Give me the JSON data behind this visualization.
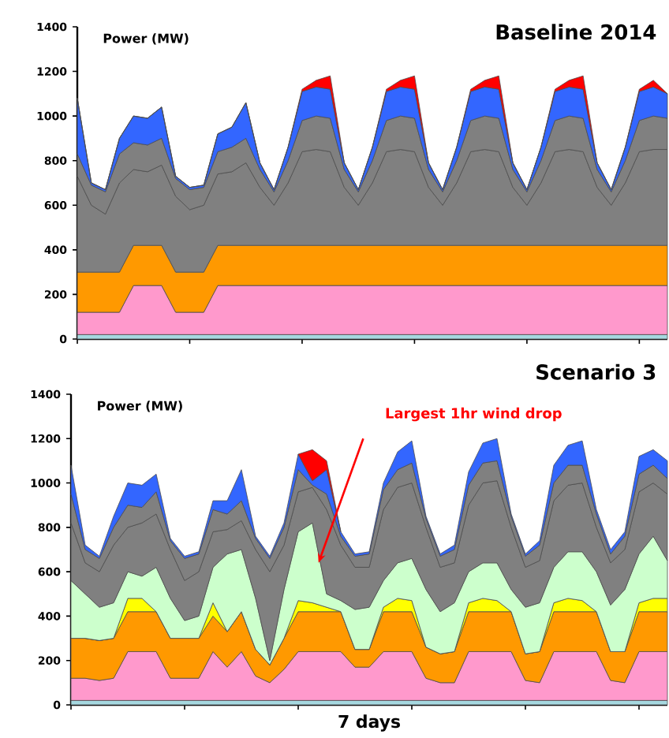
{
  "chart_data": [
    {
      "type": "area",
      "stacked": true,
      "title": "Baseline 2014",
      "ylabel": "Power (MW)",
      "categories": [
        null,
        null,
        null,
        null,
        null,
        null,
        null,
        null,
        null,
        null,
        null,
        null,
        null,
        null,
        null,
        null,
        null,
        null,
        null,
        null,
        null,
        null,
        null,
        null,
        null,
        null,
        null,
        null,
        null,
        null,
        null,
        null,
        null,
        null,
        null,
        null,
        null,
        null,
        null,
        null,
        null,
        null,
        null
      ],
      "ylim": [
        0,
        1400
      ],
      "yticks": [
        0,
        200,
        400,
        600,
        800,
        1000,
        1200,
        1400
      ],
      "tick_labels": "y",
      "series": [
        {
          "color": "#a6d8e0",
          "values": [
            20,
            20,
            20,
            20,
            20,
            20,
            20,
            20,
            20,
            20,
            20,
            20,
            20,
            20,
            20,
            20,
            20,
            20,
            20,
            20,
            20,
            20,
            20,
            20,
            20,
            20,
            20,
            20,
            20,
            20,
            20,
            20,
            20,
            20,
            20,
            20,
            20,
            20,
            20,
            20,
            20,
            20,
            20
          ]
        },
        {
          "color": "#ff99cc",
          "values": [
            100,
            100,
            100,
            100,
            220,
            220,
            220,
            100,
            100,
            100,
            220,
            220,
            220,
            220,
            220,
            220,
            220,
            220,
            220,
            220,
            220,
            220,
            220,
            220,
            220,
            220,
            220,
            220,
            220,
            220,
            220,
            220,
            220,
            220,
            220,
            220,
            220,
            220,
            220,
            220,
            220,
            220,
            220
          ]
        },
        {
          "color": "#ff9900",
          "values": [
            180,
            180,
            180,
            180,
            180,
            180,
            180,
            180,
            180,
            180,
            180,
            180,
            180,
            180,
            180,
            180,
            180,
            180,
            180,
            180,
            180,
            180,
            180,
            180,
            180,
            180,
            180,
            180,
            180,
            180,
            180,
            180,
            180,
            180,
            180,
            180,
            180,
            180,
            180,
            180,
            180,
            180,
            180
          ]
        },
        {
          "color": "#808080",
          "values": [
            430,
            300,
            260,
            400,
            340,
            330,
            360,
            340,
            280,
            300,
            320,
            330,
            370,
            260,
            180,
            280,
            420,
            430,
            420,
            260,
            180,
            280,
            420,
            430,
            420,
            260,
            180,
            280,
            420,
            430,
            420,
            260,
            180,
            280,
            420,
            430,
            420,
            260,
            180,
            280,
            420,
            430,
            430
          ]
        },
        {
          "color": "#808080",
          "values": [
            100,
            90,
            100,
            130,
            120,
            120,
            120,
            80,
            90,
            80,
            100,
            110,
            110,
            80,
            60,
            100,
            140,
            150,
            150,
            80,
            60,
            100,
            140,
            150,
            150,
            80,
            60,
            100,
            140,
            150,
            150,
            80,
            60,
            100,
            140,
            150,
            150,
            80,
            60,
            100,
            140,
            150,
            140
          ]
        },
        {
          "color": "#3366ff",
          "values": [
            250,
            10,
            10,
            70,
            120,
            120,
            140,
            10,
            10,
            10,
            80,
            90,
            160,
            30,
            10,
            60,
            130,
            130,
            130,
            30,
            10,
            60,
            130,
            130,
            130,
            30,
            10,
            60,
            130,
            130,
            130,
            30,
            10,
            60,
            130,
            130,
            130,
            30,
            10,
            60,
            130,
            130,
            110
          ]
        },
        {
          "color": "#ff0000",
          "values": [
            0,
            0,
            0,
            0,
            0,
            0,
            0,
            0,
            0,
            0,
            0,
            0,
            0,
            0,
            0,
            0,
            10,
            30,
            60,
            0,
            0,
            0,
            10,
            30,
            60,
            0,
            0,
            0,
            10,
            30,
            60,
            0,
            0,
            0,
            10,
            30,
            60,
            0,
            0,
            0,
            10,
            30,
            0
          ]
        }
      ]
    },
    {
      "type": "area",
      "stacked": true,
      "title": "Scenario 3",
      "ylabel": "Power (MW)",
      "xlabel": "7 days",
      "annotations": [
        "Largest 1hr wind drop"
      ],
      "categories": [
        null,
        null,
        null,
        null,
        null,
        null,
        null,
        null,
        null,
        null,
        null,
        null,
        null,
        null,
        null,
        null,
        null,
        null,
        null,
        null,
        null,
        null,
        null,
        null,
        null,
        null,
        null,
        null,
        null,
        null,
        null,
        null,
        null,
        null,
        null,
        null,
        null,
        null,
        null,
        null,
        null,
        null,
        null
      ],
      "ylim": [
        0,
        1400
      ],
      "yticks": [
        0,
        200,
        400,
        600,
        800,
        1000,
        1200,
        1400
      ],
      "tick_labels": "y",
      "series": [
        {
          "color": "#a6d8e0",
          "values": [
            20,
            20,
            20,
            20,
            20,
            20,
            20,
            20,
            20,
            20,
            20,
            20,
            20,
            20,
            20,
            20,
            20,
            20,
            20,
            20,
            20,
            20,
            20,
            20,
            20,
            20,
            20,
            20,
            20,
            20,
            20,
            20,
            20,
            20,
            20,
            20,
            20,
            20,
            20,
            20,
            20,
            20,
            20
          ]
        },
        {
          "color": "#ff99cc",
          "values": [
            100,
            100,
            90,
            100,
            220,
            220,
            220,
            100,
            100,
            100,
            220,
            150,
            220,
            110,
            80,
            140,
            220,
            220,
            220,
            220,
            150,
            150,
            220,
            220,
            220,
            100,
            80,
            80,
            220,
            220,
            220,
            220,
            90,
            80,
            220,
            220,
            220,
            220,
            90,
            80,
            220,
            220,
            220
          ]
        },
        {
          "color": "#ff9900",
          "values": [
            180,
            180,
            180,
            180,
            180,
            180,
            180,
            180,
            180,
            180,
            160,
            160,
            180,
            120,
            80,
            140,
            180,
            180,
            180,
            180,
            80,
            80,
            180,
            180,
            180,
            140,
            130,
            140,
            180,
            180,
            180,
            180,
            120,
            140,
            180,
            180,
            180,
            180,
            130,
            140,
            180,
            180,
            180
          ]
        },
        {
          "color": "#ffff00",
          "values": [
            0,
            0,
            0,
            0,
            60,
            60,
            0,
            0,
            0,
            0,
            60,
            0,
            0,
            0,
            0,
            0,
            50,
            40,
            20,
            0,
            0,
            0,
            20,
            60,
            50,
            0,
            0,
            0,
            40,
            60,
            50,
            0,
            0,
            0,
            40,
            60,
            50,
            0,
            0,
            0,
            40,
            60,
            60
          ]
        },
        {
          "color": "#ccffcc",
          "values": [
            260,
            200,
            150,
            160,
            120,
            100,
            200,
            180,
            80,
            100,
            160,
            350,
            280,
            230,
            20,
            220,
            310,
            360,
            60,
            50,
            180,
            190,
            120,
            160,
            190,
            260,
            190,
            220,
            140,
            160,
            170,
            100,
            210,
            220,
            160,
            210,
            220,
            180,
            210,
            280,
            220,
            280,
            170
          ]
        },
        {
          "color": "#808080",
          "values": [
            260,
            140,
            160,
            260,
            200,
            240,
            240,
            220,
            180,
            200,
            160,
            110,
            130,
            220,
            400,
            200,
            180,
            160,
            380,
            250,
            190,
            180,
            320,
            340,
            340,
            280,
            200,
            180,
            300,
            360,
            370,
            280,
            180,
            190,
            300,
            300,
            310,
            200,
            190,
            180,
            280,
            240,
            300
          ]
        },
        {
          "color": "#808080",
          "values": [
            130,
            60,
            60,
            80,
            100,
            70,
            100,
            40,
            100,
            80,
            100,
            70,
            90,
            50,
            60,
            80,
            100,
            10,
            70,
            40,
            50,
            60,
            90,
            80,
            90,
            40,
            50,
            60,
            90,
            90,
            90,
            50,
            50,
            70,
            80,
            90,
            80,
            60,
            40,
            60,
            80,
            80,
            70
          ]
        },
        {
          "color": "#3366ff",
          "values": [
            130,
            20,
            10,
            50,
            100,
            100,
            80,
            10,
            10,
            10,
            40,
            60,
            140,
            10,
            10,
            20,
            70,
            20,
            110,
            20,
            10,
            10,
            30,
            80,
            100,
            10,
            10,
            20,
            60,
            90,
            100,
            10,
            10,
            20,
            80,
            90,
            110,
            20,
            20,
            20,
            80,
            70,
            80
          ]
        },
        {
          "color": "#ff0000",
          "values": [
            null,
            null,
            null,
            null,
            null,
            null,
            null,
            null,
            null,
            null,
            null,
            null,
            null,
            null,
            null,
            null,
            0,
            140,
            40,
            0,
            null,
            null,
            null,
            null,
            null,
            null,
            null,
            null,
            null,
            null,
            null,
            null,
            null,
            null,
            null,
            null,
            null,
            null,
            null,
            null,
            null,
            null,
            null
          ]
        }
      ]
    }
  ]
}
